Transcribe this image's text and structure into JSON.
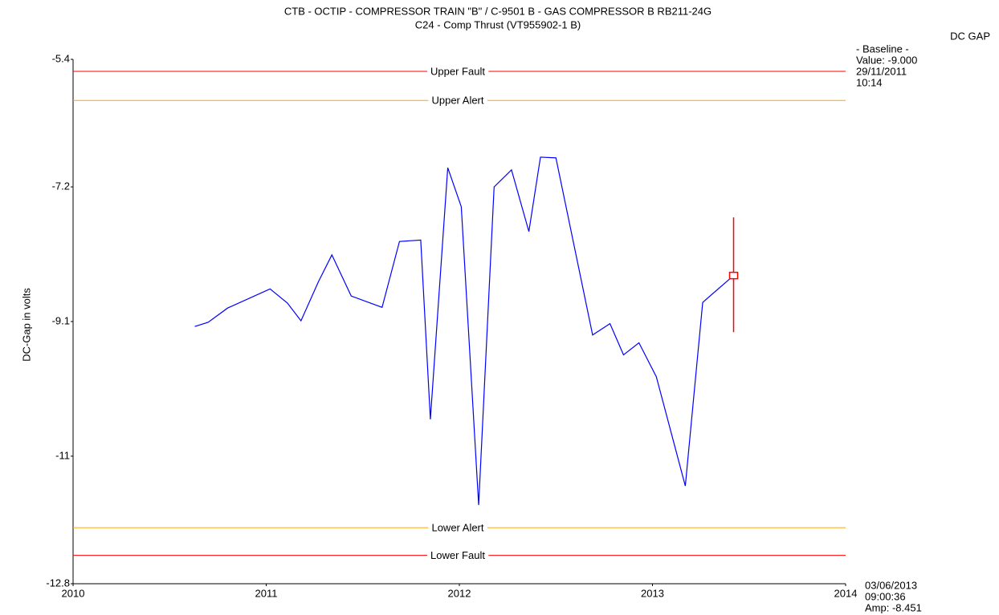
{
  "chart_data": {
    "type": "line",
    "title": "CTB - OCTIP - COMPRESSOR TRAIN  \"B\" / C-9501 B - GAS COMPRESSOR B   RB211-24G",
    "subtitle": "C24 - Comp Thrust (VT955902-1 B)",
    "y_label": "DC-Gap in volts",
    "xlim": [
      2010,
      2014
    ],
    "xticks": [
      2010,
      2011,
      2012,
      2013,
      2014
    ],
    "ylim": [
      -12.8,
      -5.4
    ],
    "yticks": [
      -5.4,
      -7.2,
      -9.1,
      -11,
      -12.8
    ],
    "series": [
      {
        "name": "DC GAP",
        "color": "#0000ff",
        "x": [
          2010.63,
          2010.7,
          2010.8,
          2011.02,
          2011.11,
          2011.18,
          2011.27,
          2011.34,
          2011.44,
          2011.6,
          2011.69,
          2011.8,
          2011.85,
          2011.94,
          2012.01,
          2012.1,
          2012.18,
          2012.27,
          2012.36,
          2012.42,
          2012.5,
          2012.69,
          2012.78,
          2012.85,
          2012.93,
          2013.02,
          2013.17,
          2013.26,
          2013.42
        ],
        "values": [
          -9.17,
          -9.11,
          -8.91,
          -8.64,
          -8.84,
          -9.09,
          -8.54,
          -8.16,
          -8.74,
          -8.9,
          -7.97,
          -7.95,
          -10.48,
          -6.93,
          -7.48,
          -11.69,
          -7.2,
          -6.96,
          -7.83,
          -6.78,
          -6.79,
          -9.29,
          -9.13,
          -9.57,
          -9.4,
          -9.88,
          -11.42,
          -8.83,
          -8.451
        ]
      }
    ],
    "cursor_range": [
      -9.25,
      -7.63
    ],
    "cursor_color": "#ff0000",
    "thresholds": [
      {
        "name": "Upper Fault",
        "value": -5.57,
        "color": "#ff0000"
      },
      {
        "name": "Upper Alert",
        "value": -5.98,
        "color": "#ffa500"
      },
      {
        "name": "Lower Alert",
        "value": -12.01,
        "color": "#ffa500"
      },
      {
        "name": "Lower Fault",
        "value": -12.4,
        "color": "#ff0000"
      }
    ],
    "baseline_box": [
      "- Baseline -",
      "Value: -9.000",
      "29/11/2011",
      "10:14"
    ],
    "cursor_box": [
      "03/06/2013",
      "09:00:36",
      "Amp: -8.451"
    ]
  }
}
